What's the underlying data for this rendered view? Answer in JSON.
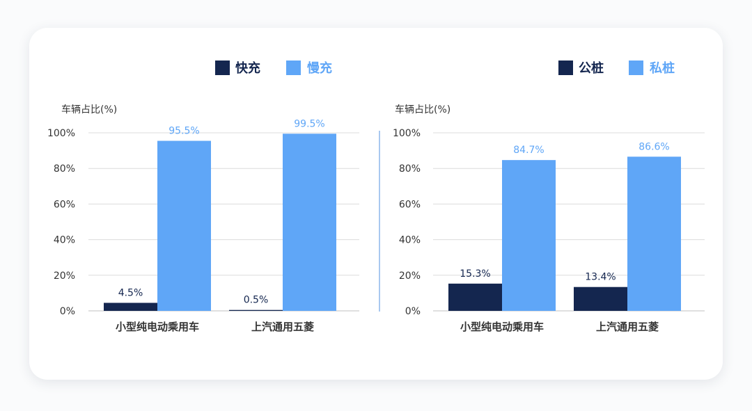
{
  "colors": {
    "dark": "#14264f",
    "light": "#5fa6f7",
    "dark_text": "#14264f",
    "light_text": "#5fa6f7"
  },
  "chart_data": [
    {
      "type": "bar",
      "ylabel": "车辆占比(%)",
      "yticks": [
        "100%",
        "80%",
        "60%",
        "40%",
        "20%",
        "0%"
      ],
      "ylim": [
        0,
        100
      ],
      "categories": [
        "小型纯电动乘用车",
        "上汽通用五菱"
      ],
      "series": [
        {
          "name": "快充",
          "color": "#14264f",
          "values": [
            4.5,
            0.5
          ],
          "labels": [
            "4.5%",
            "0.5%"
          ]
        },
        {
          "name": "慢充",
          "color": "#5fa6f7",
          "values": [
            95.5,
            99.5
          ],
          "labels": [
            "95.5%",
            "99.5%"
          ]
        }
      ],
      "legend": "top-right",
      "grid": true
    },
    {
      "type": "bar",
      "ylabel": "车辆占比(%)",
      "yticks": [
        "100%",
        "80%",
        "60%",
        "40%",
        "20%",
        "0%"
      ],
      "ylim": [
        0,
        100
      ],
      "categories": [
        "小型纯电动乘用车",
        "上汽通用五菱"
      ],
      "series": [
        {
          "name": "公桩",
          "color": "#14264f",
          "values": [
            15.3,
            13.4
          ],
          "labels": [
            "15.3%",
            "13.4%"
          ]
        },
        {
          "name": "私桩",
          "color": "#5fa6f7",
          "values": [
            84.7,
            86.6
          ],
          "labels": [
            "84.7%",
            "86.6%"
          ]
        }
      ],
      "legend": "top-right",
      "grid": true
    }
  ]
}
